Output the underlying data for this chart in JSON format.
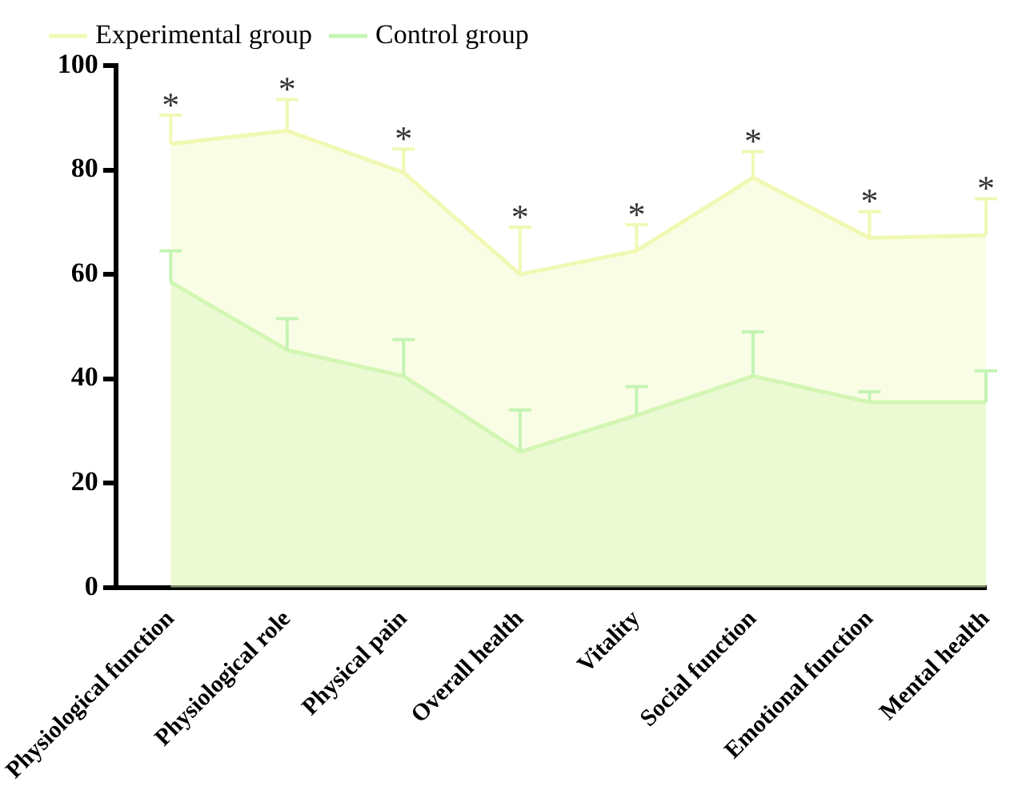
{
  "chart_data": {
    "type": "area",
    "categories": [
      "Physiological function",
      "Physiological role",
      "Physical pain",
      "Overall health",
      "Vitality",
      "Social function",
      "Emotional function",
      "Mental health"
    ],
    "series": [
      {
        "name": "Experimental group",
        "color": "#f0f8b4",
        "values": [
          85,
          87.5,
          79.5,
          60,
          64.5,
          78.5,
          67,
          67.5
        ],
        "errors": [
          [
            85,
            90.5
          ],
          [
            87.5,
            93.5
          ],
          [
            79.5,
            84
          ],
          [
            60,
            69
          ],
          [
            64.5,
            69.5
          ],
          [
            78.5,
            83.5
          ],
          [
            67,
            72
          ],
          [
            67.5,
            74.5
          ]
        ]
      },
      {
        "name": "Control group",
        "color": "#c4f4b4",
        "values": [
          58.5,
          45.5,
          40.5,
          26,
          33,
          40.5,
          35.5,
          35.5
        ],
        "errors": [
          [
            58.5,
            64.5
          ],
          [
            45.5,
            51.5
          ],
          [
            40.5,
            47.5
          ],
          [
            26,
            34
          ],
          [
            33,
            38.5
          ],
          [
            40.5,
            49
          ],
          [
            35.5,
            37.5
          ],
          [
            35.5,
            41.5
          ]
        ]
      }
    ],
    "ylim": [
      0,
      100
    ],
    "yticks": [
      0,
      20,
      40,
      60,
      80,
      100
    ],
    "grid": false,
    "legend": "top left",
    "marker": "none",
    "annotations": [
      {
        "text": "*",
        "x": "Physiological function",
        "y": 90.5
      },
      {
        "text": "*",
        "x": "Physiological role",
        "y": 93.5
      },
      {
        "text": "*",
        "x": "Physical pain",
        "y": 84
      },
      {
        "text": "*",
        "x": "Overall health",
        "y": 69
      },
      {
        "text": "*",
        "x": "Vitality",
        "y": 69.5
      },
      {
        "text": "*",
        "x": "Social function",
        "y": 83.5
      },
      {
        "text": "*",
        "x": "Emotional function",
        "y": 72
      },
      {
        "text": "*",
        "x": "Mental health",
        "y": 74.5
      }
    ]
  }
}
